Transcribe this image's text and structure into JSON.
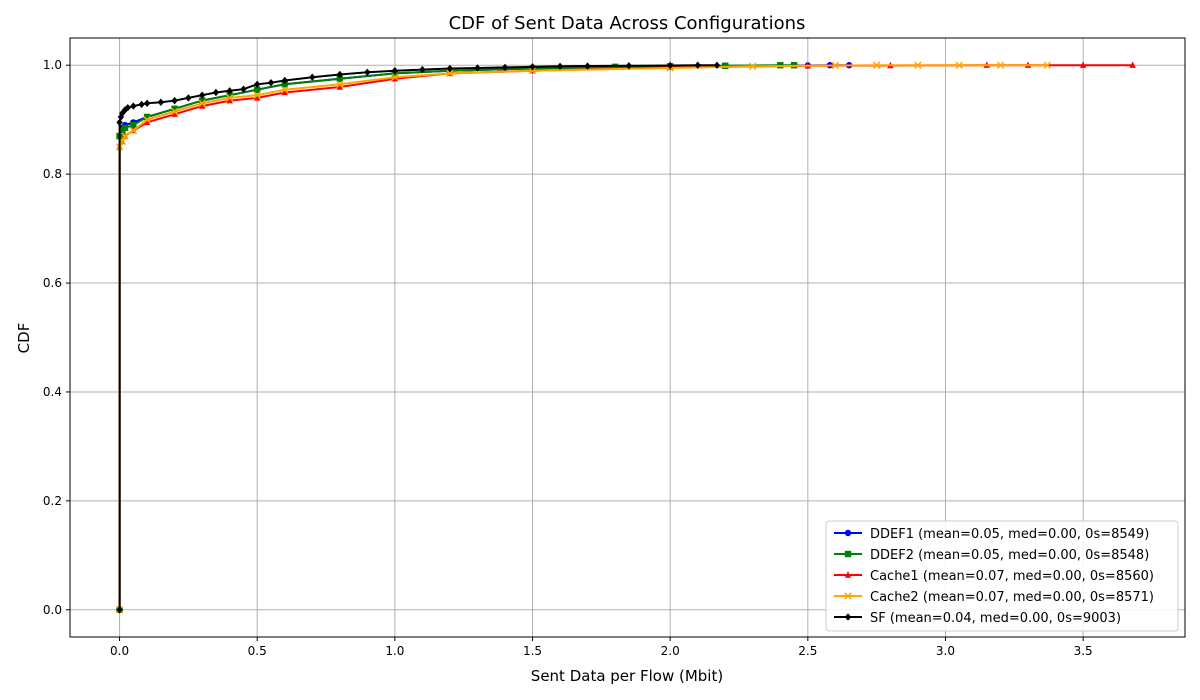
{
  "chart_data": {
    "type": "line",
    "title": "CDF of Sent Data Across Configurations",
    "xlabel": "Sent Data per Flow (Mbit)",
    "ylabel": "CDF",
    "xlim": [
      -0.18,
      3.87
    ],
    "ylim": [
      -0.05,
      1.05
    ],
    "xticks": [
      0.0,
      0.5,
      1.0,
      1.5,
      2.0,
      2.5,
      3.0,
      3.5
    ],
    "xtick_labels": [
      "0.0",
      "0.5",
      "1.0",
      "1.5",
      "2.0",
      "2.5",
      "3.0",
      "3.5"
    ],
    "yticks": [
      0.0,
      0.2,
      0.4,
      0.6,
      0.8,
      1.0
    ],
    "ytick_labels": [
      "0.0",
      "0.2",
      "0.4",
      "0.6",
      "0.8",
      "1.0"
    ],
    "grid": true,
    "legend_position": "bottom-right",
    "series": [
      {
        "name": "DDEF1 (mean=0.05, med=0.00, 0s=8549)",
        "color": "#0000ff",
        "marker": "circle",
        "x": [
          0,
          0,
          0.01,
          0.02,
          0.05,
          0.1,
          0.2,
          0.3,
          0.4,
          0.5,
          0.6,
          0.8,
          1.0,
          1.2,
          1.5,
          1.8,
          2.0,
          2.2,
          2.5,
          2.58,
          2.65
        ],
        "y": [
          0.0,
          0.87,
          0.885,
          0.89,
          0.895,
          0.905,
          0.92,
          0.935,
          0.945,
          0.955,
          0.965,
          0.975,
          0.985,
          0.99,
          0.994,
          0.997,
          0.998,
          0.999,
          0.9995,
          1.0,
          1.0
        ]
      },
      {
        "name": "DDEF2 (mean=0.05, med=0.00, 0s=8548)",
        "color": "#008000",
        "marker": "square",
        "x": [
          0,
          0,
          0.01,
          0.02,
          0.05,
          0.1,
          0.2,
          0.3,
          0.4,
          0.5,
          0.6,
          0.8,
          1.0,
          1.2,
          1.5,
          1.8,
          2.0,
          2.2,
          2.4,
          2.45
        ],
        "y": [
          0.0,
          0.87,
          0.88,
          0.885,
          0.89,
          0.905,
          0.92,
          0.935,
          0.945,
          0.955,
          0.965,
          0.975,
          0.985,
          0.99,
          0.994,
          0.997,
          0.998,
          0.999,
          1.0,
          1.0
        ]
      },
      {
        "name": "Cache1 (mean=0.07, med=0.00, 0s=8560)",
        "color": "#ff0000",
        "marker": "triangle",
        "x": [
          0,
          0,
          0.01,
          0.02,
          0.05,
          0.1,
          0.2,
          0.3,
          0.4,
          0.5,
          0.6,
          0.8,
          1.0,
          1.2,
          1.5,
          2.0,
          2.5,
          2.8,
          3.15,
          3.3,
          3.5,
          3.68
        ],
        "y": [
          0.0,
          0.85,
          0.86,
          0.87,
          0.88,
          0.895,
          0.91,
          0.925,
          0.935,
          0.94,
          0.95,
          0.96,
          0.975,
          0.985,
          0.99,
          0.996,
          0.999,
          0.9995,
          1.0,
          1.0,
          1.0,
          1.0
        ]
      },
      {
        "name": "Cache2 (mean=0.07, med=0.00, 0s=8571)",
        "color": "#ffa500",
        "marker": "x",
        "x": [
          0,
          0,
          0.01,
          0.02,
          0.05,
          0.1,
          0.2,
          0.3,
          0.4,
          0.5,
          0.6,
          0.8,
          1.0,
          1.2,
          1.5,
          2.0,
          2.3,
          2.6,
          2.75,
          2.9,
          3.05,
          3.2,
          3.37
        ],
        "y": [
          0.0,
          0.85,
          0.86,
          0.87,
          0.88,
          0.9,
          0.915,
          0.93,
          0.94,
          0.945,
          0.955,
          0.965,
          0.978,
          0.985,
          0.99,
          0.995,
          0.998,
          0.9995,
          1.0,
          1.0,
          1.0,
          1.0,
          1.0
        ]
      },
      {
        "name": "SF (mean=0.04, med=0.00, 0s=9003)",
        "color": "#000000",
        "marker": "diamond",
        "x": [
          0,
          0,
          0.005,
          0.01,
          0.02,
          0.03,
          0.05,
          0.08,
          0.1,
          0.15,
          0.2,
          0.25,
          0.3,
          0.35,
          0.4,
          0.45,
          0.5,
          0.55,
          0.6,
          0.7,
          0.8,
          0.9,
          1.0,
          1.1,
          1.2,
          1.3,
          1.4,
          1.5,
          1.6,
          1.7,
          1.85,
          2.0,
          2.1,
          2.17
        ],
        "y": [
          0.0,
          0.895,
          0.905,
          0.912,
          0.918,
          0.922,
          0.925,
          0.928,
          0.93,
          0.932,
          0.935,
          0.94,
          0.945,
          0.95,
          0.953,
          0.956,
          0.965,
          0.968,
          0.972,
          0.978,
          0.983,
          0.987,
          0.99,
          0.992,
          0.994,
          0.995,
          0.996,
          0.997,
          0.998,
          0.9985,
          0.999,
          0.9995,
          1.0,
          1.0
        ]
      }
    ]
  }
}
